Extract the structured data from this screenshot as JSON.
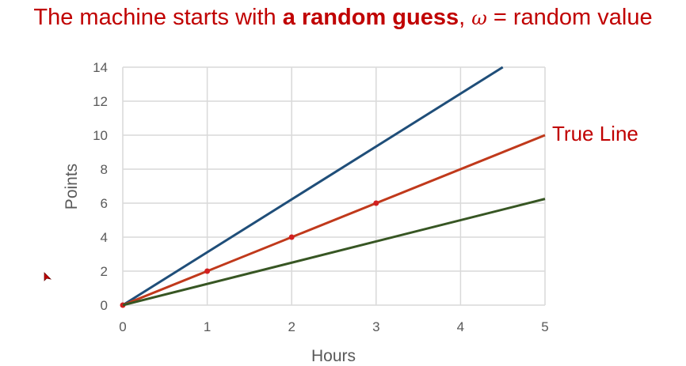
{
  "slide": {
    "title_parts": [
      "The machine starts with ",
      "a random guess",
      ", ",
      "ω",
      " = random value"
    ]
  },
  "chart_data": {
    "type": "line",
    "xlabel": "Hours",
    "ylabel": "Points",
    "xlim": [
      0,
      5
    ],
    "ylim": [
      0,
      14
    ],
    "xticks": [
      0,
      1,
      2,
      3,
      4,
      5
    ],
    "yticks": [
      0,
      2,
      4,
      6,
      8,
      10,
      12,
      14
    ],
    "grid": true,
    "series": [
      {
        "color": "#1f4e79",
        "x": [
          0,
          4.5
        ],
        "y": [
          0,
          14
        ],
        "markers": []
      },
      {
        "name": "True Line",
        "color": "#c0391b",
        "x": [
          0,
          5
        ],
        "y": [
          0,
          10
        ],
        "markers": [
          [
            0,
            0
          ],
          [
            1,
            2
          ],
          [
            2,
            4
          ],
          [
            3,
            6
          ]
        ]
      },
      {
        "color": "#375623",
        "x": [
          0,
          5
        ],
        "y": [
          0,
          6.25
        ],
        "markers": []
      }
    ],
    "annotation": "True Line",
    "annotation_color": "#c00000"
  }
}
